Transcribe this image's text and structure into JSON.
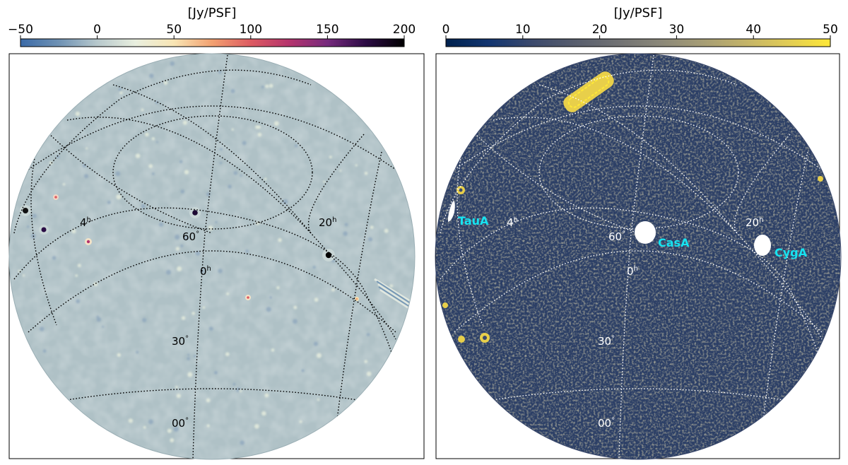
{
  "panels": [
    {
      "colorbar": {
        "label": "[Jy/PSF]",
        "ticks": [
          "−50",
          "0",
          "50",
          "100",
          "150",
          "200"
        ],
        "tick_values": [
          -50,
          0,
          50,
          100,
          150,
          200
        ],
        "range": [
          -50,
          200
        ],
        "colormap": [
          "#3b6aa7",
          "#6f92b4",
          "#b7c8cc",
          "#e9efdf",
          "#f8e5b4",
          "#f2a070",
          "#dd5b62",
          "#b5346d",
          "#762a7d",
          "#2b0b44",
          "#000000"
        ]
      },
      "grid_labels": {
        "ra_4h": "4",
        "ra_0h": "0",
        "ra_20h": "20",
        "hour_sup": "h",
        "dec_60": "60",
        "dec_30": "30",
        "dec_00": "00",
        "deg": "°"
      },
      "background": "#afc1c6",
      "grid_color": "#000000"
    },
    {
      "colorbar": {
        "label": "[Jy/PSF]",
        "ticks": [
          "0",
          "10",
          "20",
          "30",
          "40",
          "50"
        ],
        "tick_values": [
          0,
          10,
          20,
          30,
          40,
          50
        ],
        "range": [
          0,
          50
        ],
        "colormap": [
          "#00224e",
          "#123570",
          "#3b496c",
          "#575d6d",
          "#707173",
          "#8a8779",
          "#a69d75",
          "#c3b369",
          "#e1cc55",
          "#fee838"
        ]
      },
      "grid_labels": {
        "ra_4h": "4",
        "ra_0h": "0",
        "ra_20h": "20",
        "hour_sup": "h",
        "dec_60": "60",
        "dec_30": "30",
        "dec_00": "00",
        "deg": "°"
      },
      "sources": {
        "taua": "TauA",
        "casa": "CasA",
        "cyga": "CygA"
      },
      "background": "#2c3f66",
      "grid_color": "#ffffff",
      "source_label_color": "#17e3f0"
    }
  ]
}
